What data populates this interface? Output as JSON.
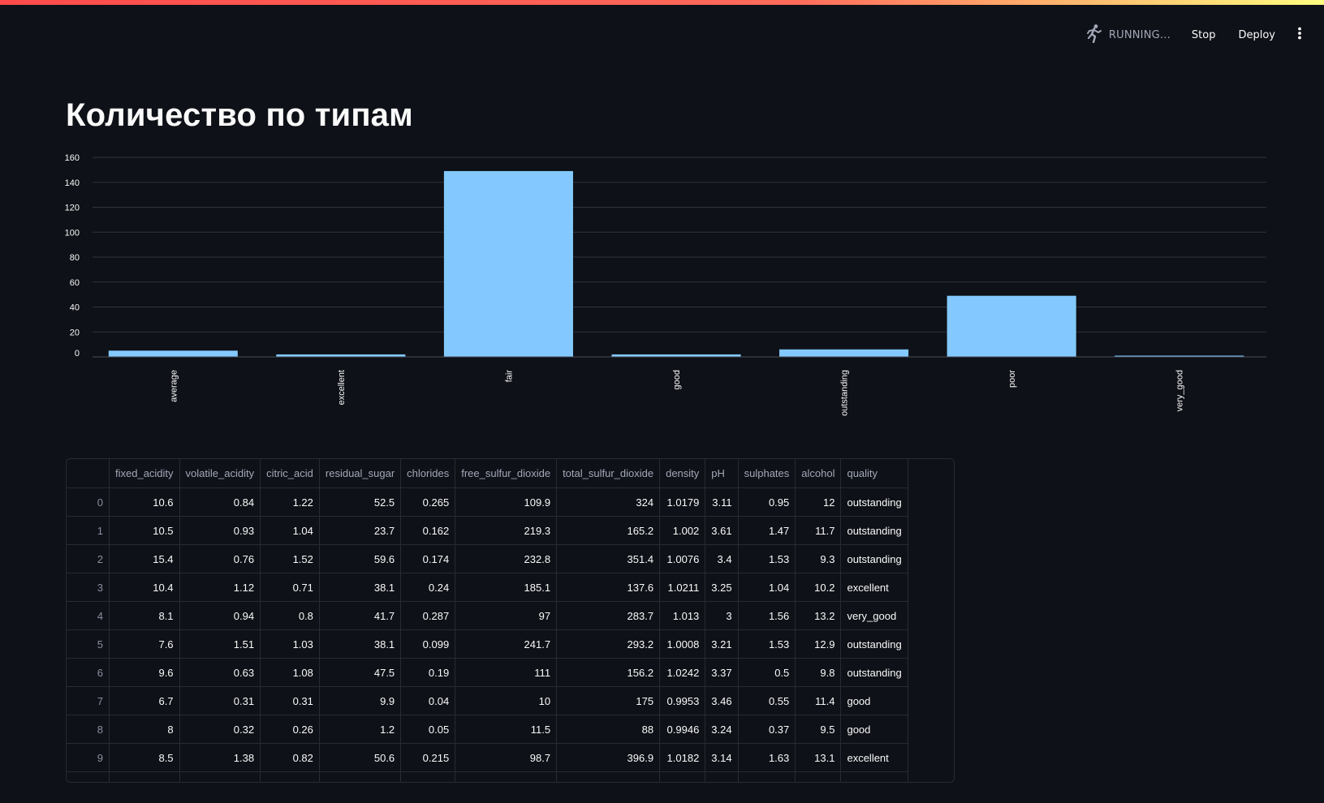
{
  "toolbar": {
    "status_label": "RUNNING...",
    "stop_label": "Stop",
    "deploy_label": "Deploy",
    "menu_icon": "vertical-ellipsis-icon",
    "status_icon": "running-figure-icon"
  },
  "page": {
    "title": "Количество по типам"
  },
  "chart_data": {
    "type": "bar",
    "categories": [
      "average",
      "excellent",
      "fair",
      "good",
      "outstanding",
      "poor",
      "very_good"
    ],
    "values": [
      5,
      2,
      149,
      2,
      6,
      49,
      1
    ],
    "title": "",
    "xlabel": "",
    "ylabel": "",
    "ylim": [
      0,
      160
    ],
    "yticks": [
      0,
      20,
      40,
      60,
      80,
      100,
      120,
      140,
      160
    ],
    "grid": true,
    "color": "#83c9ff"
  },
  "table": {
    "columns": [
      "fixed_acidity",
      "volatile_acidity",
      "citric_acid",
      "residual_sugar",
      "chlorides",
      "free_sulfur_dioxide",
      "total_sulfur_dioxide",
      "density",
      "pH",
      "sulphates",
      "alcohol",
      "quality"
    ],
    "rows": [
      [
        "0",
        "10.6",
        "0.84",
        "1.22",
        "52.5",
        "0.265",
        "109.9",
        "324",
        "1.0179",
        "3.11",
        "0.95",
        "12",
        "outstanding"
      ],
      [
        "1",
        "10.5",
        "0.93",
        "1.04",
        "23.7",
        "0.162",
        "219.3",
        "165.2",
        "1.002",
        "3.61",
        "1.47",
        "11.7",
        "outstanding"
      ],
      [
        "2",
        "15.4",
        "0.76",
        "1.52",
        "59.6",
        "0.174",
        "232.8",
        "351.4",
        "1.0076",
        "3.4",
        "1.53",
        "9.3",
        "outstanding"
      ],
      [
        "3",
        "10.4",
        "1.12",
        "0.71",
        "38.1",
        "0.24",
        "185.1",
        "137.6",
        "1.0211",
        "3.25",
        "1.04",
        "10.2",
        "excellent"
      ],
      [
        "4",
        "8.1",
        "0.94",
        "0.8",
        "41.7",
        "0.287",
        "97",
        "283.7",
        "1.013",
        "3",
        "1.56",
        "13.2",
        "very_good"
      ],
      [
        "5",
        "7.6",
        "1.51",
        "1.03",
        "38.1",
        "0.099",
        "241.7",
        "293.2",
        "1.0008",
        "3.21",
        "1.53",
        "12.9",
        "outstanding"
      ],
      [
        "6",
        "9.6",
        "0.63",
        "1.08",
        "47.5",
        "0.19",
        "111",
        "156.2",
        "1.0242",
        "3.37",
        "0.5",
        "9.8",
        "outstanding"
      ],
      [
        "7",
        "6.7",
        "0.31",
        "0.31",
        "9.9",
        "0.04",
        "10",
        "175",
        "0.9953",
        "3.46",
        "0.55",
        "11.4",
        "good"
      ],
      [
        "8",
        "8",
        "0.32",
        "0.26",
        "1.2",
        "0.05",
        "11.5",
        "88",
        "0.9946",
        "3.24",
        "0.37",
        "9.5",
        "good"
      ],
      [
        "9",
        "8.5",
        "1.38",
        "0.82",
        "50.6",
        "0.215",
        "98.7",
        "396.9",
        "1.0182",
        "3.14",
        "1.63",
        "13.1",
        "excellent"
      ]
    ]
  }
}
